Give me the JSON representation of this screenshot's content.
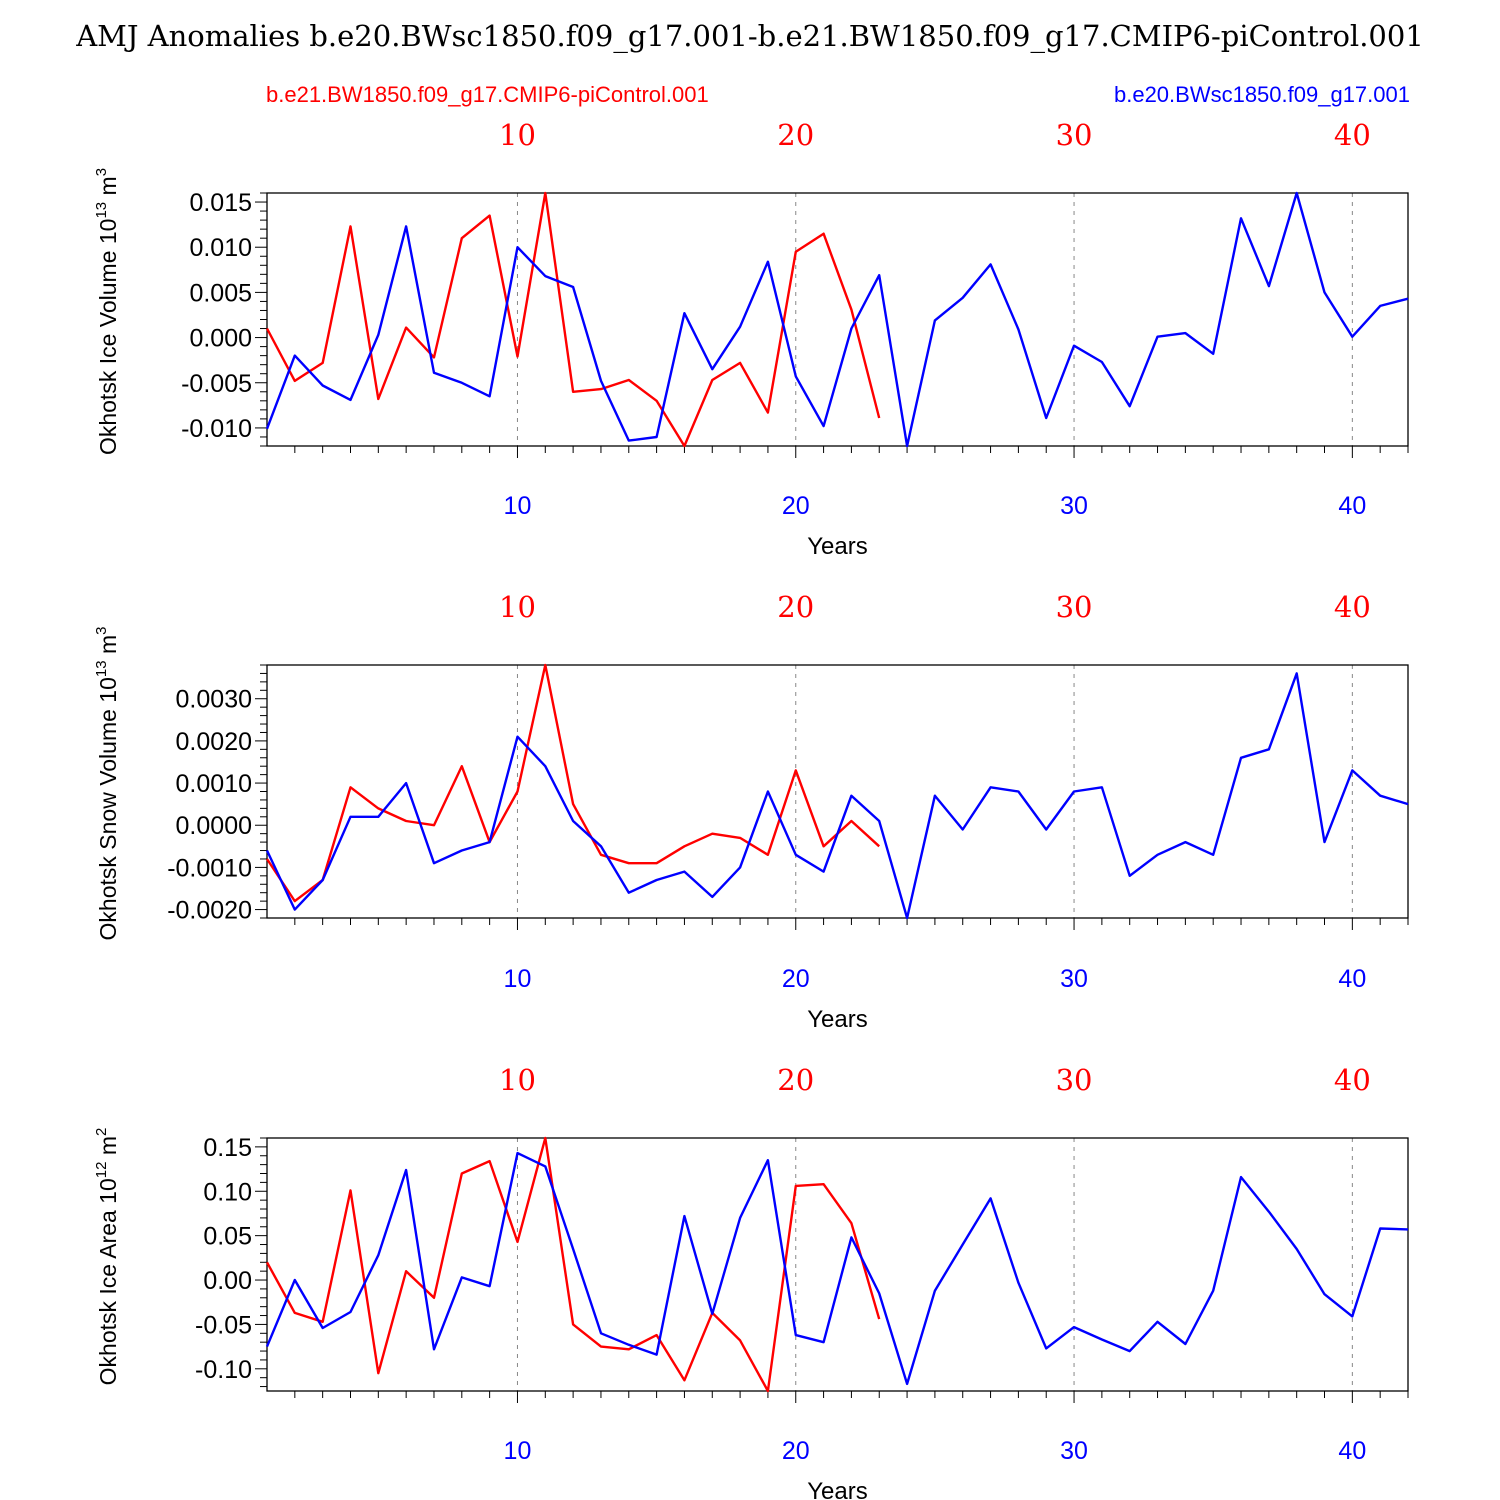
{
  "title": "AMJ Anomalies b.e20.BWsc1850.f09_g17.001-b.e21.BW1850.f09_g17.CMIP6-piControl.001",
  "legend": {
    "red_label": "b.e21.BW1850.f09_g17.CMIP6-piControl.001",
    "blue_label": "b.e20.BWsc1850.f09_g17.001"
  },
  "colors": {
    "red": "#ff0000",
    "blue": "#0000ff",
    "axis": "#000000",
    "grid": "#888888"
  },
  "chart_data": [
    {
      "type": "line",
      "title": "",
      "xlabel": "Years",
      "ylabel": "Okhotsk Ice Volume 10",
      "ylabel_sup": "13",
      "ylabel_unit": " m",
      "ylabel_unit_sup": "3",
      "xlim": [
        1,
        42
      ],
      "ylim": [
        -0.012,
        0.016
      ],
      "yticks": [
        -0.01,
        -0.005,
        0.0,
        0.005,
        0.01,
        0.015
      ],
      "ytick_labels": [
        "-0.010",
        "-0.005",
        "0.000",
        "0.005",
        "0.010",
        "0.015"
      ],
      "xticks": [
        10,
        20,
        30,
        40
      ],
      "xtick_labels": [
        "10",
        "20",
        "30",
        "40"
      ],
      "grid_x": [
        10,
        20,
        30,
        40
      ],
      "series": [
        {
          "name": "b.e21.BW1850.f09_g17.CMIP6-piControl.001",
          "color": "red",
          "x_start": 1,
          "values": [
            0.001,
            -0.0048,
            -0.0028,
            0.0123,
            -0.0068,
            0.0011,
            -0.0022,
            0.011,
            0.0135,
            -0.0021,
            0.016,
            -0.006,
            -0.0057,
            -0.0047,
            -0.007,
            -0.012,
            -0.0047,
            -0.0028,
            -0.0083,
            0.0095,
            0.0115,
            0.0031,
            -0.0089
          ]
        },
        {
          "name": "b.e20.BWsc1850.f09_g17.001",
          "color": "blue",
          "x_start": 1,
          "values": [
            -0.0101,
            -0.002,
            -0.0053,
            -0.0069,
            0.0003,
            0.0123,
            -0.0039,
            -0.005,
            -0.0065,
            0.01,
            0.0068,
            0.0056,
            -0.0048,
            -0.0114,
            -0.011,
            0.0027,
            -0.0035,
            0.0012,
            0.0084,
            -0.0043,
            -0.0098,
            0.001,
            0.0069,
            -0.012,
            0.0019,
            0.0044,
            0.0081,
            0.0009,
            -0.0089,
            -0.0009,
            -0.0027,
            -0.0076,
            0.0001,
            0.0005,
            -0.0018,
            0.0132,
            0.0057,
            0.016,
            0.005,
            0.0001,
            0.0035,
            0.0043
          ]
        }
      ]
    },
    {
      "type": "line",
      "title": "",
      "xlabel": "Years",
      "ylabel": "Okhotsk Snow Volume 10",
      "ylabel_sup": "13",
      "ylabel_unit": " m",
      "ylabel_unit_sup": "3",
      "xlim": [
        1,
        42
      ],
      "ylim": [
        -0.0022,
        0.0038
      ],
      "yticks": [
        -0.002,
        -0.001,
        0.0,
        0.001,
        0.002,
        0.003
      ],
      "ytick_labels": [
        "-0.0020",
        "-0.0010",
        "0.0000",
        "0.0010",
        "0.0020",
        "0.0030"
      ],
      "xticks": [
        10,
        20,
        30,
        40
      ],
      "xtick_labels": [
        "10",
        "20",
        "30",
        "40"
      ],
      "grid_x": [
        10,
        20,
        30,
        40
      ],
      "series": [
        {
          "name": "b.e21.BW1850.f09_g17.CMIP6-piControl.001",
          "color": "red",
          "x_start": 1,
          "values": [
            -0.0008,
            -0.0018,
            -0.0013,
            0.0009,
            0.0004,
            0.0001,
            0.0,
            0.0014,
            -0.0004,
            0.0008,
            0.0038,
            0.0005,
            -0.0007,
            -0.0009,
            -0.0009,
            -0.0005,
            -0.0002,
            -0.0003,
            -0.0007,
            0.0013,
            -0.0005,
            0.0001,
            -0.0005
          ]
        },
        {
          "name": "b.e20.BWsc1850.f09_g17.001",
          "color": "blue",
          "x_start": 1,
          "values": [
            -0.0006,
            -0.002,
            -0.0013,
            0.0002,
            0.0002,
            0.001,
            -0.0009,
            -0.0006,
            -0.0004,
            0.0021,
            0.0014,
            0.0001,
            -0.0005,
            -0.0016,
            -0.0013,
            -0.0011,
            -0.0017,
            -0.001,
            0.0008,
            -0.0007,
            -0.0011,
            0.0007,
            0.0001,
            -0.0022,
            0.0007,
            -0.0001,
            0.0009,
            0.0008,
            -0.0001,
            0.0008,
            0.0009,
            -0.0012,
            -0.0007,
            -0.0004,
            -0.0007,
            0.0016,
            0.0018,
            0.0036,
            -0.0004,
            0.0013,
            0.0007,
            0.0005
          ]
        }
      ]
    },
    {
      "type": "line",
      "title": "",
      "xlabel": "Years",
      "ylabel": "Okhotsk Ice Area 10",
      "ylabel_sup": "12",
      "ylabel_unit": " m",
      "ylabel_unit_sup": "2",
      "xlim": [
        1,
        42
      ],
      "ylim": [
        -0.125,
        0.16
      ],
      "yticks": [
        -0.1,
        -0.05,
        0.0,
        0.05,
        0.1,
        0.15
      ],
      "ytick_labels": [
        "-0.10",
        "-0.05",
        "0.00",
        "0.05",
        "0.10",
        "0.15"
      ],
      "xticks": [
        10,
        20,
        30,
        40
      ],
      "xtick_labels": [
        "10",
        "20",
        "30",
        "40"
      ],
      "grid_x": [
        10,
        20,
        30,
        40
      ],
      "series": [
        {
          "name": "b.e21.BW1850.f09_g17.CMIP6-piControl.001",
          "color": "red",
          "x_start": 1,
          "values": [
            0.02,
            -0.037,
            -0.047,
            0.101,
            -0.105,
            0.01,
            -0.02,
            0.12,
            0.134,
            0.043,
            0.16,
            -0.05,
            -0.075,
            -0.078,
            -0.062,
            -0.113,
            -0.037,
            -0.068,
            -0.125,
            0.106,
            0.108,
            0.064,
            -0.044
          ]
        },
        {
          "name": "b.e20.BWsc1850.f09_g17.001",
          "color": "blue",
          "x_start": 1,
          "values": [
            -0.075,
            0.0,
            -0.054,
            -0.036,
            0.028,
            0.124,
            -0.078,
            0.003,
            -0.007,
            0.143,
            0.128,
            0.035,
            -0.06,
            -0.073,
            -0.084,
            0.072,
            -0.038,
            0.07,
            0.135,
            -0.062,
            -0.07,
            0.048,
            -0.015,
            -0.117,
            -0.012,
            0.04,
            0.092,
            -0.003,
            -0.077,
            -0.053,
            -0.067,
            -0.08,
            -0.047,
            -0.072,
            -0.012,
            0.116,
            0.077,
            0.035,
            -0.016,
            -0.041,
            0.058,
            0.057
          ]
        }
      ]
    }
  ]
}
